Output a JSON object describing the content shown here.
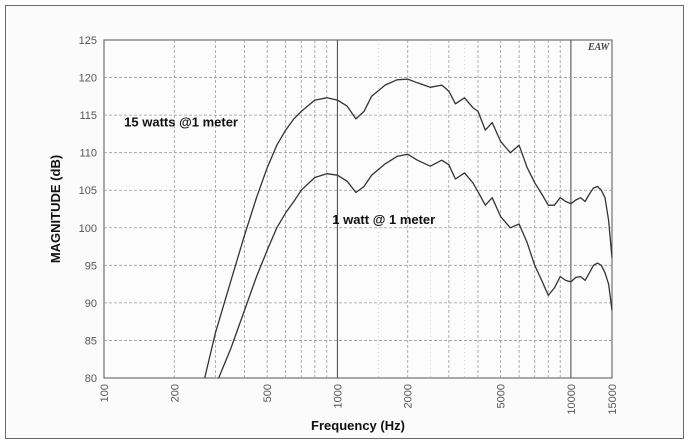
{
  "chart_data": {
    "type": "line",
    "xlabel": "Frequency (Hz)",
    "ylabel": "MAGNITUDE (dB)",
    "x_scale": "log",
    "xlim": [
      100,
      15000
    ],
    "ylim": [
      80,
      125
    ],
    "x_ticks": [
      100,
      200,
      500,
      1000,
      2000,
      5000,
      10000,
      15000
    ],
    "x_tick_labels": [
      "100",
      "200",
      "500",
      "1000",
      "2000",
      "5000",
      "10000",
      "15000"
    ],
    "y_ticks": [
      80,
      85,
      90,
      95,
      100,
      105,
      110,
      115,
      120,
      125
    ],
    "y_tick_labels": [
      "80",
      "85",
      "90",
      "95",
      "100",
      "105",
      "110",
      "115",
      "120",
      "125"
    ],
    "grid": true,
    "logo_text": "EAW",
    "series": [
      {
        "name": "15 watts @1 meter",
        "color": "#333333",
        "points": [
          [
            270,
            80
          ],
          [
            300,
            86
          ],
          [
            350,
            93
          ],
          [
            400,
            99
          ],
          [
            450,
            104
          ],
          [
            500,
            108
          ],
          [
            550,
            111
          ],
          [
            600,
            113
          ],
          [
            650,
            114.5
          ],
          [
            700,
            115.5
          ],
          [
            800,
            117
          ],
          [
            900,
            117.3
          ],
          [
            1000,
            117
          ],
          [
            1100,
            116.2
          ],
          [
            1200,
            114.5
          ],
          [
            1300,
            115.5
          ],
          [
            1400,
            117.5
          ],
          [
            1600,
            119
          ],
          [
            1800,
            119.7
          ],
          [
            2000,
            119.8
          ],
          [
            2200,
            119.3
          ],
          [
            2500,
            118.7
          ],
          [
            2800,
            119
          ],
          [
            3000,
            118.2
          ],
          [
            3200,
            116.5
          ],
          [
            3500,
            117.3
          ],
          [
            3800,
            116
          ],
          [
            4000,
            115.5
          ],
          [
            4300,
            113
          ],
          [
            4600,
            114
          ],
          [
            5000,
            111.5
          ],
          [
            5500,
            110
          ],
          [
            6000,
            111
          ],
          [
            6500,
            108
          ],
          [
            7000,
            106
          ],
          [
            7500,
            104.5
          ],
          [
            8000,
            103
          ],
          [
            8500,
            103
          ],
          [
            9000,
            104
          ],
          [
            9500,
            103.5
          ],
          [
            10000,
            103.2
          ],
          [
            10500,
            103.7
          ],
          [
            11000,
            104
          ],
          [
            11500,
            103.5
          ],
          [
            12000,
            104.5
          ],
          [
            12500,
            105.3
          ],
          [
            13000,
            105.5
          ],
          [
            13500,
            105
          ],
          [
            14000,
            104
          ],
          [
            14500,
            101
          ],
          [
            15000,
            96
          ]
        ]
      },
      {
        "name": "1 watt @ 1 meter",
        "color": "#333333",
        "points": [
          [
            310,
            80
          ],
          [
            350,
            84
          ],
          [
            400,
            89
          ],
          [
            450,
            93.5
          ],
          [
            500,
            97
          ],
          [
            550,
            100
          ],
          [
            600,
            102
          ],
          [
            650,
            103.5
          ],
          [
            700,
            105
          ],
          [
            800,
            106.7
          ],
          [
            900,
            107.2
          ],
          [
            1000,
            107
          ],
          [
            1100,
            106.2
          ],
          [
            1200,
            104.7
          ],
          [
            1300,
            105.5
          ],
          [
            1400,
            107
          ],
          [
            1600,
            108.5
          ],
          [
            1800,
            109.5
          ],
          [
            2000,
            109.8
          ],
          [
            2200,
            109
          ],
          [
            2500,
            108.2
          ],
          [
            2800,
            109
          ],
          [
            3000,
            108.4
          ],
          [
            3200,
            106.5
          ],
          [
            3500,
            107.3
          ],
          [
            3800,
            106
          ],
          [
            4000,
            104.8
          ],
          [
            4300,
            103
          ],
          [
            4600,
            104
          ],
          [
            5000,
            101.5
          ],
          [
            5500,
            100
          ],
          [
            6000,
            100.5
          ],
          [
            6500,
            98
          ],
          [
            7000,
            95
          ],
          [
            7500,
            93
          ],
          [
            8000,
            91
          ],
          [
            8500,
            92
          ],
          [
            9000,
            93.5
          ],
          [
            9500,
            93
          ],
          [
            10000,
            92.8
          ],
          [
            10500,
            93.4
          ],
          [
            11000,
            93.5
          ],
          [
            11500,
            93
          ],
          [
            12000,
            94
          ],
          [
            12500,
            95
          ],
          [
            13000,
            95.3
          ],
          [
            13500,
            95
          ],
          [
            14000,
            94
          ],
          [
            14500,
            92.5
          ],
          [
            15000,
            89
          ]
        ]
      }
    ],
    "annotations": [
      {
        "text": "15 watts @1 meter",
        "series": 0,
        "x": 122,
        "y": 113.5
      },
      {
        "text": "1 watt @ 1 meter",
        "series": 1,
        "x": 950,
        "y": 100.5
      }
    ]
  }
}
